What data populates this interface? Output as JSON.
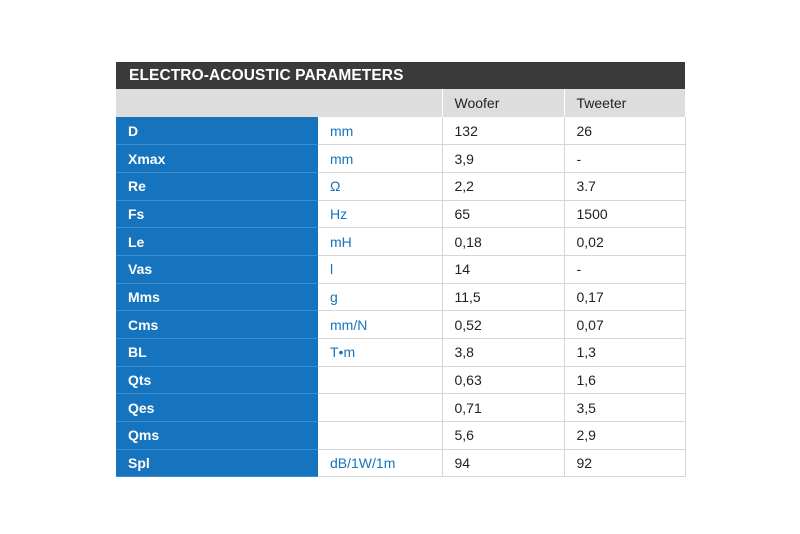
{
  "title": "ELECTRO-ACOUSTIC PARAMETERS",
  "columns": [
    "Woofer",
    "Tweeter"
  ],
  "rows": [
    {
      "name": "D",
      "unit": "mm",
      "woofer": "132",
      "tweeter": "26"
    },
    {
      "name": "Xmax",
      "unit": "mm",
      "woofer": "3,9",
      "tweeter": "-"
    },
    {
      "name": "Re",
      "unit": "Ω",
      "woofer": "2,2",
      "tweeter": "3.7"
    },
    {
      "name": "Fs",
      "unit": "Hz",
      "woofer": "65",
      "tweeter": "1500"
    },
    {
      "name": "Le",
      "unit": "mH",
      "woofer": "0,18",
      "tweeter": "0,02"
    },
    {
      "name": "Vas",
      "unit": "l",
      "woofer": "14",
      "tweeter": "-"
    },
    {
      "name": "Mms",
      "unit": "g",
      "woofer": "11,5",
      "tweeter": "0,17"
    },
    {
      "name": "Cms",
      "unit": "mm/N",
      "woofer": "0,52",
      "tweeter": "0,07"
    },
    {
      "name": "BL",
      "unit": "T•m",
      "woofer": "3,8",
      "tweeter": "1,3"
    },
    {
      "name": "Qts",
      "unit": "",
      "woofer": "0,63",
      "tweeter": "1,6"
    },
    {
      "name": "Qes",
      "unit": "",
      "woofer": "0,71",
      "tweeter": "3,5"
    },
    {
      "name": "Qms",
      "unit": "",
      "woofer": "5,6",
      "tweeter": "2,9"
    },
    {
      "name": "Spl",
      "unit": "dB/1W/1m",
      "woofer": "94",
      "tweeter": "92"
    }
  ],
  "colors": {
    "title_bg": "#3a3a3a",
    "header_bg": "#dddddd",
    "param_bg": "#1574bd",
    "unit_text": "#1574bd"
  },
  "watermark_icon": "brand-logo-watermark"
}
